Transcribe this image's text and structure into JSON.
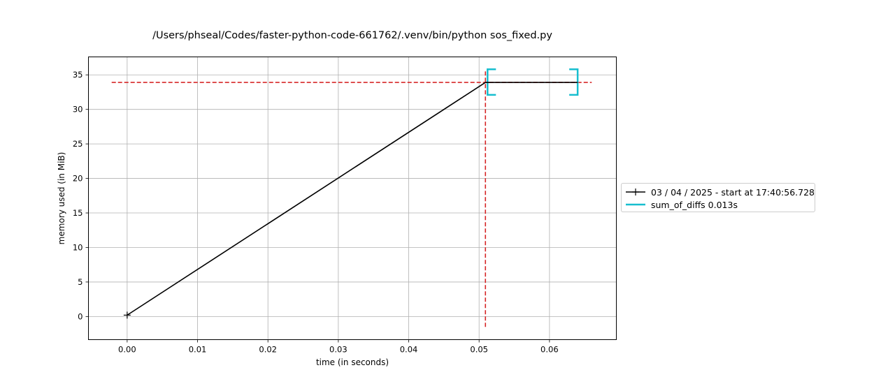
{
  "chart_data": {
    "type": "line",
    "title": "/Users/phseal/Codes/faster-python-code-661762/.venv/bin/python sos_fixed.py",
    "xlabel": "time (in seconds)",
    "ylabel": "memory used (in MiB)",
    "xlim": [
      -0.0055,
      0.0695
    ],
    "ylim": [
      -3.35,
      37.6
    ],
    "xticks": [
      0.0,
      0.01,
      0.02,
      0.03,
      0.04,
      0.05,
      0.06
    ],
    "xtick_labels": [
      "0.00",
      "0.01",
      "0.02",
      "0.03",
      "0.04",
      "0.05",
      "0.06"
    ],
    "yticks": [
      0,
      5,
      10,
      15,
      20,
      25,
      30,
      35
    ],
    "ytick_labels": [
      "0",
      "5",
      "10",
      "15",
      "20",
      "25",
      "30",
      "35"
    ],
    "grid": true,
    "legend_position": "outside-right",
    "series": [
      {
        "name": "03 / 04 / 2025 - start at 17:40:56.728",
        "color": "#000000",
        "marker": "+",
        "x": [
          0.0,
          0.0509,
          0.064
        ],
        "y": [
          0.2,
          33.9,
          33.9
        ]
      }
    ],
    "function_brackets": [
      {
        "name": "sum_of_diffs 0.013s",
        "color": "#17becf",
        "x_start": 0.0512,
        "x_end": 0.064,
        "y_low": 32.1,
        "y_high": 35.8
      }
    ],
    "max_lines": {
      "color": "#d62728",
      "y": 33.9,
      "x_from": -0.0022,
      "x_to": 0.066,
      "x": 0.0509,
      "y_from": -1.5,
      "y_to": 35.6
    }
  }
}
